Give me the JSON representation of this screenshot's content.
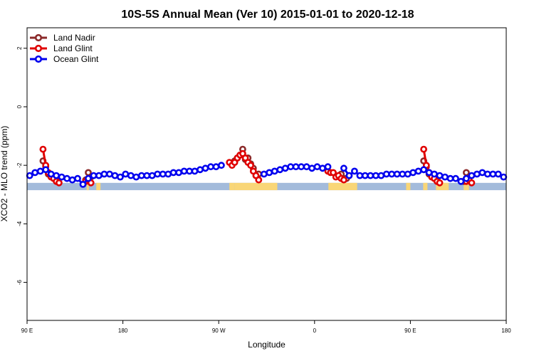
{
  "chart_data": {
    "type": "line",
    "title": "10S-5S Annual Mean (Ver 10)   2015-01-01 to 2020-12-18",
    "xlabel": "Longitude",
    "ylabel": "XCO2 - MLO trend (ppm)",
    "xlim": [
      90,
      540
    ],
    "ylim": [
      -7.3,
      2.7
    ],
    "x_ticks": [
      {
        "value": 90,
        "label": "90 E"
      },
      {
        "value": 180,
        "label": "180"
      },
      {
        "value": 270,
        "label": "90 W"
      },
      {
        "value": 360,
        "label": "0"
      },
      {
        "value": 450,
        "label": "90 E"
      },
      {
        "value": 540,
        "label": "180"
      }
    ],
    "y_ticks": [
      {
        "value": 2,
        "label": "2"
      },
      {
        "value": 0,
        "label": "0"
      },
      {
        "value": -2,
        "label": "-2"
      },
      {
        "value": -4,
        "label": "-4"
      },
      {
        "value": -6,
        "label": "-6"
      }
    ],
    "legend_position": "top-left",
    "grid": false,
    "land_ocean_strip": {
      "y_range": [
        -2.85,
        -2.6
      ],
      "ocean_color": "#a3bbdb",
      "land_color": "#f9d677",
      "land_spans": [
        [
          146,
          148
        ],
        [
          155,
          159
        ],
        [
          280,
          285
        ],
        [
          285,
          325
        ],
        [
          373,
          400
        ],
        [
          446,
          450
        ],
        [
          462,
          466
        ],
        [
          474,
          486
        ],
        [
          500,
          505
        ]
      ]
    },
    "series": [
      {
        "name": "Land Nadir",
        "color": "#8b2a2a",
        "segments": [
          [
            [
              105,
              -1.85
            ],
            [
              107.5,
              -2.05
            ],
            [
              110,
              -2.3
            ],
            [
              112.5,
              -2.35
            ],
            [
              115,
              -2.45
            ],
            [
              117.5,
              -2.5
            ]
          ],
          [
            [
              145,
              -2.5
            ],
            [
              147.5,
              -2.45
            ]
          ],
          [
            [
              147.5,
              -2.25
            ],
            [
              150,
              -2.4
            ]
          ],
          [
            [
              282.5,
              -1.95
            ],
            [
              285,
              -1.85
            ],
            [
              287.5,
              -1.75
            ],
            [
              290,
              -1.65
            ],
            [
              292.5,
              -1.45
            ],
            [
              295,
              -1.8
            ],
            [
              297.5,
              -1.75
            ],
            [
              300,
              -1.95
            ],
            [
              302.5,
              -2.1
            ],
            [
              305,
              -2.35
            ],
            [
              307.5,
              -2.3
            ]
          ],
          [
            [
              385,
              -2.3
            ],
            [
              387.5,
              -2.45
            ],
            [
              390,
              -2.45
            ],
            [
              392.5,
              -2.35
            ]
          ],
          [
            [
              462.5,
              -1.85
            ],
            [
              465,
              -2.05
            ],
            [
              467.5,
              -2.3
            ],
            [
              470,
              -2.35
            ],
            [
              472.5,
              -2.45
            ],
            [
              475,
              -2.5
            ]
          ],
          [
            [
              500,
              -2.55
            ],
            [
              502.5,
              -2.45
            ]
          ],
          [
            [
              502.5,
              -2.25
            ],
            [
              505,
              -2.4
            ]
          ]
        ]
      },
      {
        "name": "Land Glint",
        "color": "#e00000",
        "segments": [
          [
            [
              105,
              -1.45
            ],
            [
              107.5,
              -2.0
            ],
            [
              110,
              -2.25
            ],
            [
              112.5,
              -2.4
            ],
            [
              115,
              -2.45
            ],
            [
              117.5,
              -2.55
            ],
            [
              120,
              -2.6
            ]
          ],
          [
            [
              145,
              -2.55
            ],
            [
              147.5,
              -2.5
            ],
            [
              150,
              -2.6
            ]
          ],
          [
            [
              280,
              -1.9
            ],
            [
              282.5,
              -2.0
            ],
            [
              285,
              -1.9
            ],
            [
              287.5,
              -1.75
            ],
            [
              290,
              -1.65
            ],
            [
              292.5,
              -1.6
            ],
            [
              295,
              -1.75
            ],
            [
              297.5,
              -1.9
            ],
            [
              300,
              -2.0
            ],
            [
              302.5,
              -2.2
            ],
            [
              305,
              -2.35
            ],
            [
              307.5,
              -2.5
            ]
          ],
          [
            [
              372.5,
              -2.2
            ],
            [
              375,
              -2.25
            ],
            [
              377.5,
              -2.25
            ],
            [
              380,
              -2.4
            ],
            [
              382.5,
              -2.35
            ],
            [
              385,
              -2.45
            ],
            [
              387.5,
              -2.5
            ]
          ],
          [
            [
              462.5,
              -1.45
            ],
            [
              465,
              -2.0
            ],
            [
              467.5,
              -2.25
            ],
            [
              470,
              -2.4
            ],
            [
              472.5,
              -2.45
            ],
            [
              475,
              -2.55
            ],
            [
              477.5,
              -2.6
            ]
          ],
          [
            [
              502.5,
              -2.55
            ],
            [
              505,
              -2.5
            ],
            [
              507.5,
              -2.6
            ]
          ]
        ]
      },
      {
        "name": "Ocean Glint",
        "color": "#0000ee",
        "segments": [
          [
            [
              92.5,
              -2.35
            ],
            [
              97.5,
              -2.25
            ],
            [
              102.5,
              -2.2
            ],
            [
              107.5,
              -2.15
            ],
            [
              112.5,
              -2.3
            ],
            [
              117.5,
              -2.35
            ],
            [
              122.5,
              -2.4
            ],
            [
              127.5,
              -2.45
            ],
            [
              132.5,
              -2.5
            ],
            [
              137.5,
              -2.45
            ],
            [
              142.5,
              -2.65
            ],
            [
              147.5,
              -2.45
            ],
            [
              152.5,
              -2.35
            ],
            [
              157.5,
              -2.35
            ],
            [
              162.5,
              -2.3
            ],
            [
              167.5,
              -2.3
            ],
            [
              172.5,
              -2.35
            ],
            [
              177.5,
              -2.4
            ],
            [
              182.5,
              -2.3
            ],
            [
              187.5,
              -2.35
            ],
            [
              192.5,
              -2.4
            ],
            [
              197.5,
              -2.35
            ],
            [
              202.5,
              -2.35
            ],
            [
              207.5,
              -2.35
            ],
            [
              212.5,
              -2.3
            ],
            [
              217.5,
              -2.3
            ],
            [
              222.5,
              -2.3
            ],
            [
              227.5,
              -2.25
            ],
            [
              232.5,
              -2.25
            ],
            [
              237.5,
              -2.2
            ],
            [
              242.5,
              -2.2
            ],
            [
              247.5,
              -2.2
            ],
            [
              252.5,
              -2.15
            ],
            [
              257.5,
              -2.1
            ],
            [
              262.5,
              -2.05
            ],
            [
              267.5,
              -2.05
            ],
            [
              272.5,
              -2.0
            ]
          ],
          [
            [
              312.5,
              -2.3
            ],
            [
              317.5,
              -2.25
            ],
            [
              322.5,
              -2.2
            ],
            [
              327.5,
              -2.15
            ],
            [
              332.5,
              -2.1
            ],
            [
              337.5,
              -2.05
            ],
            [
              342.5,
              -2.05
            ],
            [
              347.5,
              -2.05
            ],
            [
              352.5,
              -2.05
            ],
            [
              357.5,
              -2.1
            ],
            [
              362.5,
              -2.05
            ],
            [
              367.5,
              -2.1
            ],
            [
              372.5,
              -2.05
            ]
          ],
          [
            [
              387.5,
              -2.1
            ],
            [
              392.5,
              -2.35
            ],
            [
              397.5,
              -2.2
            ],
            [
              402.5,
              -2.35
            ],
            [
              407.5,
              -2.35
            ],
            [
              412.5,
              -2.35
            ],
            [
              417.5,
              -2.35
            ],
            [
              422.5,
              -2.35
            ],
            [
              427.5,
              -2.3
            ],
            [
              432.5,
              -2.3
            ],
            [
              437.5,
              -2.3
            ],
            [
              442.5,
              -2.3
            ],
            [
              447.5,
              -2.3
            ],
            [
              452.5,
              -2.25
            ],
            [
              457.5,
              -2.2
            ],
            [
              462.5,
              -2.15
            ],
            [
              467.5,
              -2.25
            ],
            [
              472.5,
              -2.3
            ],
            [
              477.5,
              -2.35
            ],
            [
              482.5,
              -2.4
            ],
            [
              487.5,
              -2.45
            ],
            [
              492.5,
              -2.45
            ],
            [
              497.5,
              -2.55
            ],
            [
              502.5,
              -2.45
            ],
            [
              507.5,
              -2.35
            ],
            [
              512.5,
              -2.3
            ],
            [
              517.5,
              -2.25
            ],
            [
              522.5,
              -2.3
            ],
            [
              527.5,
              -2.3
            ],
            [
              532.5,
              -2.3
            ],
            [
              537.5,
              -2.4
            ]
          ]
        ]
      }
    ]
  }
}
